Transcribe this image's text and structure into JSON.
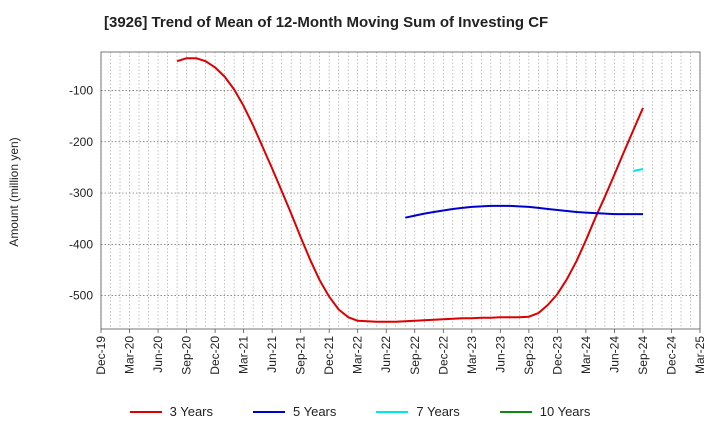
{
  "title": "[3926]  Trend of Mean of 12-Month Moving Sum of Investing CF",
  "chart_data": {
    "type": "line",
    "title": "[3926]  Trend of Mean of 12-Month Moving Sum of Investing CF",
    "ylabel": "Amount (million yen)",
    "xlabel": "",
    "ylim": [
      -565,
      -25
    ],
    "yticks": [
      -100,
      -200,
      -300,
      -400,
      -500
    ],
    "categories": [
      "Dec-19",
      "Mar-20",
      "Jun-20",
      "Sep-20",
      "Dec-20",
      "Mar-21",
      "Jun-21",
      "Sep-21",
      "Dec-21",
      "Mar-22",
      "Jun-22",
      "Sep-22",
      "Dec-22",
      "Mar-23",
      "Jun-23",
      "Sep-23",
      "Dec-23",
      "Mar-24",
      "Jun-24",
      "Sep-24",
      "Dec-24",
      "Mar-25"
    ],
    "grid": true,
    "legend_position": "bottom",
    "series": [
      {
        "name": "3 Years",
        "color": "#dd0000",
        "x": [
          "Aug-20",
          "Sep-20",
          "Oct-20",
          "Nov-20",
          "Dec-20",
          "Jan-21",
          "Feb-21",
          "Mar-21",
          "Apr-21",
          "May-21",
          "Jun-21",
          "Jul-21",
          "Aug-21",
          "Sep-21",
          "Oct-21",
          "Nov-21",
          "Dec-21",
          "Jan-22",
          "Feb-22",
          "Mar-22",
          "Apr-22",
          "May-22",
          "Jun-22",
          "Jul-22",
          "Aug-22",
          "Sep-22",
          "Oct-22",
          "Nov-22",
          "Dec-22",
          "Jan-23",
          "Feb-23",
          "Mar-23",
          "Apr-23",
          "May-23",
          "Jun-23",
          "Jul-23",
          "Aug-23",
          "Sep-23",
          "Oct-23",
          "Nov-23",
          "Dec-23",
          "Jan-24",
          "Feb-24",
          "Mar-24",
          "Apr-24",
          "May-24",
          "Jun-24",
          "Jul-24",
          "Aug-24",
          "Sep-24"
        ],
        "values": [
          -43,
          -37,
          -37,
          -43,
          -55,
          -73,
          -98,
          -130,
          -168,
          -210,
          -252,
          -296,
          -340,
          -386,
          -430,
          -470,
          -502,
          -527,
          -542,
          -549,
          -550,
          -551,
          -551,
          -551,
          -550,
          -549,
          -548,
          -547,
          -546,
          -545,
          -544,
          -544,
          -543,
          -543,
          -542,
          -542,
          -542,
          -541,
          -534,
          -518,
          -497,
          -468,
          -433,
          -392,
          -348,
          -307,
          -264,
          -220,
          -177,
          -134
        ]
      },
      {
        "name": "5 Years",
        "color": "#0000cc",
        "x": [
          "Aug-22",
          "Sep-22",
          "Oct-22",
          "Nov-22",
          "Dec-22",
          "Jan-23",
          "Feb-23",
          "Mar-23",
          "Apr-23",
          "May-23",
          "Jun-23",
          "Jul-23",
          "Aug-23",
          "Sep-23",
          "Oct-23",
          "Nov-23",
          "Dec-23",
          "Jan-24",
          "Feb-24",
          "Mar-24",
          "Apr-24",
          "May-24",
          "Jun-24",
          "Jul-24",
          "Aug-24",
          "Sep-24"
        ],
        "values": [
          -348,
          -344,
          -340,
          -337,
          -334,
          -331,
          -329,
          -327,
          -326,
          -325,
          -325,
          -325,
          -326,
          -327,
          -329,
          -331,
          -333,
          -335,
          -337,
          -338,
          -339,
          -340,
          -341,
          -341,
          -341,
          -341
        ]
      },
      {
        "name": "7 Years",
        "color": "#00e5e5",
        "x": [
          "Aug-24",
          "Sep-24"
        ],
        "values": [
          -257,
          -253
        ]
      },
      {
        "name": "10 Years",
        "color": "#118811",
        "x": [],
        "values": []
      }
    ]
  }
}
